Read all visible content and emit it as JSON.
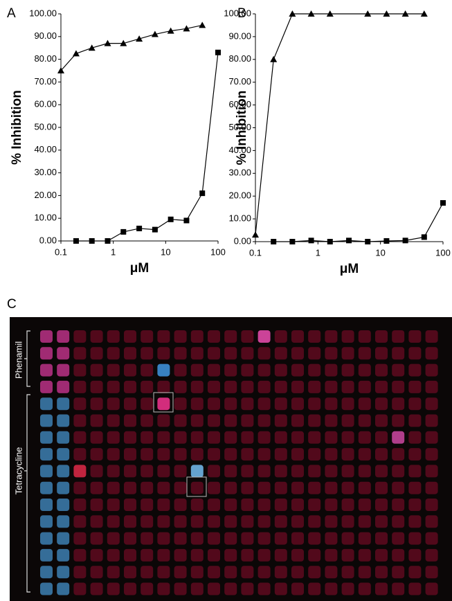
{
  "chart_data": [
    {
      "type": "line",
      "title": "A",
      "ylabel": "% Inhibition",
      "xlabel": "μM",
      "xscale": "log",
      "xlim": [
        0.1,
        100
      ],
      "xticks": [
        0.1,
        1,
        10,
        100
      ],
      "ylim": [
        0,
        100
      ],
      "yticks": [
        {
          "value": 0,
          "label": "0.00"
        },
        {
          "value": 10,
          "label": "10.00"
        },
        {
          "value": 20,
          "label": "20.00"
        },
        {
          "value": 30,
          "label": "30.00"
        },
        {
          "value": 40,
          "label": "40.00"
        },
        {
          "value": 50,
          "label": "50.00"
        },
        {
          "value": 60,
          "label": "60.00"
        },
        {
          "value": 70,
          "label": "70.00"
        },
        {
          "value": 80,
          "label": "80.00"
        },
        {
          "value": 90,
          "label": "90.00"
        },
        {
          "value": 100,
          "label": "100.00"
        }
      ],
      "series": [
        {
          "marker": "triangle",
          "color": "#000000",
          "x": [
            0.1,
            0.195,
            0.39,
            0.78,
            1.56,
            3.125,
            6.25,
            12.5,
            25,
            50
          ],
          "values": [
            75,
            82.5,
            85,
            87,
            87,
            89,
            91,
            92.5,
            93.5,
            95
          ]
        },
        {
          "marker": "square",
          "color": "#000000",
          "x": [
            0.195,
            0.39,
            0.78,
            1.56,
            3.125,
            6.25,
            12.5,
            25,
            50,
            100
          ],
          "values": [
            0,
            0,
            0,
            4,
            5.5,
            5,
            9.5,
            9,
            21,
            83
          ]
        }
      ]
    },
    {
      "type": "line",
      "title": "B",
      "ylabel": "% Inhibition",
      "xlabel": "μM",
      "xscale": "log",
      "xlim": [
        0.1,
        100
      ],
      "xticks": [
        0.1,
        1,
        10,
        100
      ],
      "ylim": [
        0,
        100
      ],
      "yticks": [
        {
          "value": 0,
          "label": "0.00"
        },
        {
          "value": 10,
          "label": "10.00"
        },
        {
          "value": 20,
          "label": "20.00"
        },
        {
          "value": 30,
          "label": "30.00"
        },
        {
          "value": 40,
          "label": "40.00"
        },
        {
          "value": 50,
          "label": "50.00"
        },
        {
          "value": 60,
          "label": "60.00"
        },
        {
          "value": 70,
          "label": "70.00"
        },
        {
          "value": 80,
          "label": "80.00"
        },
        {
          "value": 90,
          "label": "90.00"
        },
        {
          "value": 100,
          "label": "100.00"
        }
      ],
      "series": [
        {
          "marker": "triangle",
          "color": "#000000",
          "x": [
            0.1,
            0.195,
            0.39,
            0.78,
            1.56,
            6.25,
            12.5,
            25,
            50
          ],
          "values": [
            3,
            80,
            100,
            100,
            100,
            100,
            100,
            100,
            100
          ]
        },
        {
          "marker": "square",
          "color": "#000000",
          "x": [
            0.195,
            0.39,
            0.78,
            1.56,
            3.125,
            6.25,
            12.5,
            25,
            50,
            100
          ],
          "values": [
            0,
            0,
            0.5,
            0,
            0.5,
            0,
            0.3,
            0.5,
            2,
            17
          ]
        }
      ]
    }
  ],
  "panel_c": {
    "label": "C",
    "group_labels": [
      "Phenamil",
      "Tetracycline"
    ]
  }
}
